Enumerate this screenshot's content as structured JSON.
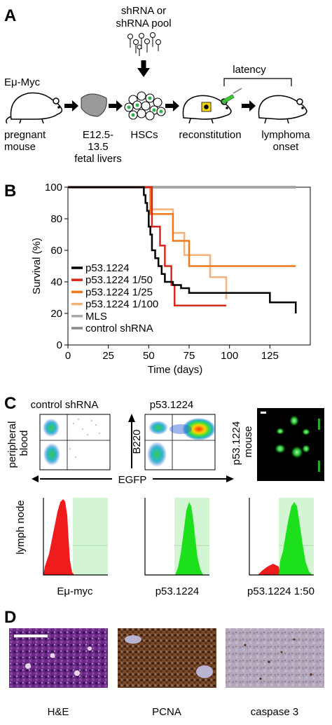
{
  "panels": {
    "A": {
      "letter": "A",
      "shrna_label_line1": "shRNA or",
      "shrna_label_line2": "shRNA pool",
      "emu_myc": "Eμ-Myc",
      "latency": "latency",
      "steps": [
        {
          "line1": "pregnant",
          "line2": "mouse",
          "line3": ""
        },
        {
          "line1": "E12.5-",
          "line2": "13.5",
          "line3": "fetal livers"
        },
        {
          "line1": "HSCs",
          "line2": "",
          "line3": ""
        },
        {
          "line1": "reconstitution",
          "line2": "",
          "line3": ""
        },
        {
          "line1": "lymphoma",
          "line2": "onset",
          "line3": ""
        }
      ]
    },
    "B": {
      "letter": "B",
      "chart_data": {
        "type": "line",
        "xlabel": "Time (days)",
        "ylabel": "Survival (%)",
        "xlim": [
          0,
          150
        ],
        "ylim": [
          0,
          100
        ],
        "xticks": [
          0,
          25,
          50,
          75,
          100,
          125
        ],
        "yticks": [
          0,
          20,
          40,
          60,
          80,
          100
        ],
        "legend_position": "lower-left",
        "series": [
          {
            "name": "p53.1224",
            "color": "#000000",
            "x": [
              0,
              45,
              47,
              48,
              49,
              50,
              51,
              52,
              54,
              56,
              58,
              60,
              65,
              70,
              75,
              100,
              125,
              140,
              141
            ],
            "y": [
              100,
              100,
              95,
              90,
              85,
              75,
              70,
              60,
              55,
              50,
              45,
              40,
              38,
              36,
              33,
              33,
              27,
              27,
              20
            ]
          },
          {
            "name": "p53.1224 1/50",
            "color": "#d8281c",
            "x": [
              0,
              50,
              52,
              57,
              60,
              64,
              66,
              98
            ],
            "y": [
              100,
              100,
              75,
              63,
              50,
              38,
              25,
              25
            ]
          },
          {
            "name": "p53.1224 1/25",
            "color": "#f07818",
            "x": [
              0,
              49,
              51,
              60,
              65,
              75,
              141
            ],
            "y": [
              100,
              100,
              83,
              83,
              66,
              50,
              50
            ]
          },
          {
            "name": "p53.1224 1/100",
            "color": "#f5b27a",
            "x": [
              0,
              48,
              51,
              65,
              72,
              88,
              98
            ],
            "y": [
              100,
              100,
              86,
              71,
              57,
              43,
              29
            ]
          },
          {
            "name": "MLS",
            "color": "#a8a8a8",
            "x": [
              0,
              141
            ],
            "y": [
              100,
              100
            ]
          },
          {
            "name": "control shRNA",
            "color": "#888888",
            "x": [
              0,
              141
            ],
            "y": [
              100,
              100
            ]
          }
        ]
      }
    },
    "C": {
      "letter": "C",
      "col1_title": "control shRNA",
      "col2_title": "p53.1224",
      "row1_label_line1": "peripheral",
      "row1_label_line2": "blood",
      "y_axis_label": "B220",
      "x_axis_label": "EGFP",
      "mouse_label_line1": "p53.1224",
      "mouse_label_line2": "mouse",
      "row2_label": "lymph node",
      "histograms": [
        {
          "label": "Eμ-myc"
        },
        {
          "label": "p53.1224"
        },
        {
          "label": "p53.1224 1:50"
        }
      ]
    },
    "D": {
      "letter": "D",
      "images": [
        {
          "label": "H&E"
        },
        {
          "label": "PCNA"
        },
        {
          "label": "caspase 3"
        }
      ]
    }
  }
}
